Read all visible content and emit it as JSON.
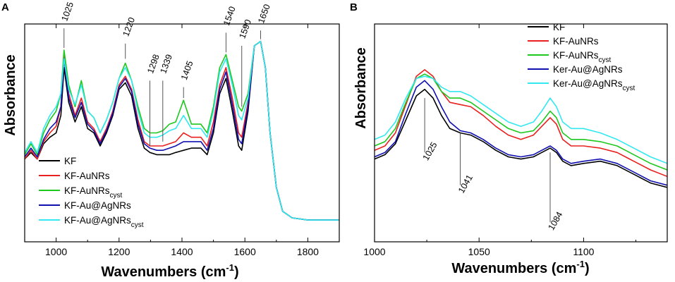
{
  "figure": {
    "panels": [
      "A",
      "B"
    ],
    "ylabel": "Absorbance",
    "xlabel_main": "Wavenumbers (cm",
    "xlabel_sup": "-1",
    "xlabel_close": ")"
  },
  "colors": {
    "KF": "#000000",
    "KF-AuNRs": "#e8201f",
    "KF-AuNRs-cyst": "#1ec81e",
    "Au@AgNRs": "#1010b0",
    "Au@AgNRs-cyst": "#33e8f0"
  },
  "chart_data": [
    {
      "type": "line",
      "panel": "A",
      "xlabel": "Wavenumbers (cm-1)",
      "ylabel": "Absorbance",
      "xlim": [
        900,
        1900
      ],
      "ylim": [
        0,
        1
      ],
      "xticks": [
        1000,
        1200,
        1400,
        1600,
        1800
      ],
      "x": [
        900,
        920,
        940,
        960,
        980,
        1000,
        1015,
        1025,
        1040,
        1060,
        1080,
        1100,
        1120,
        1140,
        1160,
        1180,
        1200,
        1220,
        1240,
        1260,
        1280,
        1298,
        1320,
        1339,
        1360,
        1380,
        1405,
        1430,
        1460,
        1480,
        1500,
        1520,
        1540,
        1560,
        1580,
        1590,
        1610,
        1630,
        1650,
        1665,
        1680,
        1700,
        1720,
        1750,
        1800,
        1850,
        1900
      ],
      "series": [
        {
          "name": "KF",
          "color_key": "KF",
          "values": [
            0.38,
            0.41,
            0.38,
            0.45,
            0.48,
            0.5,
            0.58,
            0.8,
            0.64,
            0.55,
            0.62,
            0.52,
            0.5,
            0.44,
            0.5,
            0.58,
            0.7,
            0.73,
            0.67,
            0.52,
            0.43,
            0.41,
            0.4,
            0.4,
            0.4,
            0.41,
            0.42,
            0.43,
            0.43,
            0.4,
            0.5,
            0.68,
            0.75,
            0.6,
            0.44,
            0.42,
            0.6,
            0.9,
            0.92,
            0.8,
            0.5,
            0.25,
            0.14,
            0.11,
            0.1,
            0.1,
            0.1
          ]
        },
        {
          "name": "KF-AuNRs",
          "color_key": "KF-AuNRs",
          "values": [
            0.38,
            0.42,
            0.38,
            0.46,
            0.5,
            0.53,
            0.62,
            0.86,
            0.68,
            0.58,
            0.66,
            0.55,
            0.52,
            0.46,
            0.52,
            0.6,
            0.72,
            0.76,
            0.7,
            0.56,
            0.46,
            0.44,
            0.44,
            0.44,
            0.45,
            0.46,
            0.5,
            0.48,
            0.48,
            0.44,
            0.55,
            0.72,
            0.8,
            0.66,
            0.5,
            0.48,
            0.64,
            0.9,
            0.92,
            0.8,
            0.5,
            0.25,
            0.14,
            0.11,
            0.1,
            0.1,
            0.1
          ]
        },
        {
          "name": "KF-AuNRs-cyst",
          "color_key": "KF-AuNRs-cyst",
          "values": [
            0.4,
            0.45,
            0.4,
            0.5,
            0.56,
            0.6,
            0.68,
            0.88,
            0.72,
            0.62,
            0.74,
            0.6,
            0.57,
            0.5,
            0.56,
            0.64,
            0.75,
            0.82,
            0.74,
            0.62,
            0.52,
            0.5,
            0.5,
            0.51,
            0.54,
            0.55,
            0.65,
            0.54,
            0.54,
            0.5,
            0.62,
            0.8,
            0.86,
            0.74,
            0.62,
            0.6,
            0.68,
            0.9,
            0.92,
            0.8,
            0.5,
            0.25,
            0.14,
            0.11,
            0.1,
            0.1,
            0.1
          ]
        },
        {
          "name": "Au@AgNRs",
          "color_key": "Au@AgNRs",
          "values": [
            0.39,
            0.43,
            0.39,
            0.47,
            0.52,
            0.55,
            0.62,
            0.84,
            0.66,
            0.57,
            0.64,
            0.54,
            0.51,
            0.45,
            0.51,
            0.59,
            0.71,
            0.75,
            0.69,
            0.54,
            0.45,
            0.43,
            0.42,
            0.42,
            0.43,
            0.44,
            0.46,
            0.46,
            0.46,
            0.42,
            0.52,
            0.7,
            0.78,
            0.63,
            0.47,
            0.45,
            0.62,
            0.9,
            0.92,
            0.8,
            0.5,
            0.25,
            0.14,
            0.11,
            0.1,
            0.1,
            0.1
          ]
        },
        {
          "name": "Au@AgNRs-cyst",
          "color_key": "Au@AgNRs-cyst",
          "values": [
            0.41,
            0.46,
            0.41,
            0.52,
            0.58,
            0.62,
            0.68,
            0.84,
            0.7,
            0.63,
            0.72,
            0.6,
            0.57,
            0.5,
            0.56,
            0.64,
            0.75,
            0.8,
            0.74,
            0.6,
            0.5,
            0.48,
            0.48,
            0.49,
            0.51,
            0.52,
            0.58,
            0.52,
            0.52,
            0.48,
            0.6,
            0.78,
            0.84,
            0.72,
            0.58,
            0.56,
            0.66,
            0.9,
            0.92,
            0.8,
            0.5,
            0.25,
            0.14,
            0.11,
            0.1,
            0.1,
            0.1
          ]
        }
      ],
      "annotations": [
        {
          "label": "1025",
          "x": 1025,
          "y": 0.89,
          "line": [
            0.89,
            0.98
          ],
          "text_y": 1.01,
          "rotate": -70
        },
        {
          "label": "1220",
          "x": 1220,
          "y": 0.84,
          "line": [
            0.84,
            0.91
          ],
          "text_y": 0.94,
          "rotate": -70
        },
        {
          "label": "1298",
          "x": 1298,
          "y": 0.44,
          "line": [
            0.44,
            0.74
          ],
          "text_y": 0.77,
          "rotate": -70
        },
        {
          "label": "1339",
          "x": 1339,
          "y": 0.46,
          "line": [
            0.46,
            0.74
          ],
          "text_y": 0.77,
          "rotate": -70
        },
        {
          "label": "1405",
          "x": 1405,
          "y": 0.66,
          "line": [
            0.66,
            0.71
          ],
          "text_y": 0.74,
          "rotate": -70
        },
        {
          "label": "1540",
          "x": 1540,
          "y": 0.87,
          "line": [
            0.87,
            0.96
          ],
          "text_y": 0.99,
          "rotate": -70
        },
        {
          "label": "1590",
          "x": 1590,
          "y": 0.62,
          "line": [
            0.62,
            0.9
          ],
          "text_y": 0.93,
          "rotate": -70
        },
        {
          "label": "1650",
          "x": 1650,
          "y": 0.93,
          "line": [
            0.93,
            0.97
          ],
          "text_y": 1.0,
          "rotate": -70
        }
      ],
      "legend": {
        "placement": "bottom-left",
        "entries": [
          {
            "main": "KF",
            "sub": "",
            "color_key": "KF"
          },
          {
            "main": "KF-AuNRs",
            "sub": "",
            "color_key": "KF-AuNRs"
          },
          {
            "main": "KF-AuNRs",
            "sub": "cyst",
            "color_key": "KF-AuNRs-cyst"
          },
          {
            "main": "KF-Au@AgNRs",
            "sub": "",
            "color_key": "Au@AgNRs"
          },
          {
            "main": "KF-Au@AgNRs",
            "sub": "cyst",
            "color_key": "Au@AgNRs-cyst"
          }
        ]
      }
    },
    {
      "type": "line",
      "panel": "B",
      "xlabel": "Wavenumbers (cm-1)",
      "ylabel": "Absorbance",
      "xlim": [
        1000,
        1140
      ],
      "ylim": [
        0,
        1
      ],
      "xticks": [
        1000,
        1050,
        1100
      ],
      "x": [
        1000,
        1005,
        1010,
        1015,
        1020,
        1024,
        1028,
        1032,
        1036,
        1041,
        1046,
        1052,
        1058,
        1064,
        1070,
        1076,
        1080,
        1084,
        1087,
        1090,
        1094,
        1100,
        1108,
        1116,
        1124,
        1132,
        1140
      ],
      "series": [
        {
          "name": "KF",
          "color_key": "KF",
          "values": [
            0.38,
            0.4,
            0.45,
            0.56,
            0.67,
            0.7,
            0.66,
            0.58,
            0.52,
            0.5,
            0.49,
            0.46,
            0.42,
            0.39,
            0.38,
            0.39,
            0.41,
            0.43,
            0.41,
            0.37,
            0.35,
            0.36,
            0.37,
            0.35,
            0.31,
            0.27,
            0.25
          ]
        },
        {
          "name": "KF-AuNRs",
          "color_key": "KF-AuNRs",
          "values": [
            0.42,
            0.44,
            0.5,
            0.63,
            0.76,
            0.79,
            0.76,
            0.69,
            0.64,
            0.63,
            0.62,
            0.58,
            0.53,
            0.49,
            0.47,
            0.49,
            0.53,
            0.57,
            0.54,
            0.47,
            0.44,
            0.44,
            0.43,
            0.41,
            0.37,
            0.33,
            0.3
          ]
        },
        {
          "name": "KF-AuNRs-cyst",
          "color_key": "KF-AuNRs-cyst",
          "values": [
            0.44,
            0.46,
            0.52,
            0.64,
            0.75,
            0.77,
            0.75,
            0.69,
            0.66,
            0.66,
            0.64,
            0.6,
            0.56,
            0.52,
            0.5,
            0.51,
            0.55,
            0.6,
            0.57,
            0.5,
            0.47,
            0.47,
            0.46,
            0.44,
            0.4,
            0.36,
            0.33
          ]
        },
        {
          "name": "Au@AgNRs",
          "color_key": "Au@AgNRs",
          "values": [
            0.39,
            0.41,
            0.46,
            0.59,
            0.71,
            0.74,
            0.7,
            0.62,
            0.55,
            0.51,
            0.5,
            0.47,
            0.43,
            0.4,
            0.39,
            0.4,
            0.42,
            0.44,
            0.42,
            0.38,
            0.36,
            0.37,
            0.38,
            0.36,
            0.32,
            0.28,
            0.26
          ]
        },
        {
          "name": "Au@AgNRs-cyst",
          "color_key": "Au@AgNRs-cyst",
          "values": [
            0.47,
            0.49,
            0.55,
            0.66,
            0.75,
            0.76,
            0.75,
            0.71,
            0.69,
            0.69,
            0.67,
            0.63,
            0.59,
            0.55,
            0.53,
            0.55,
            0.6,
            0.66,
            0.62,
            0.55,
            0.52,
            0.52,
            0.5,
            0.47,
            0.43,
            0.39,
            0.36
          ]
        }
      ],
      "annotations": [
        {
          "label": "1025",
          "x": 1024,
          "y": 0.66,
          "line": [
            0.41,
            0.66
          ],
          "text_y": 0.37,
          "rotate": -60
        },
        {
          "label": "1041",
          "x": 1041,
          "y": 0.5,
          "line": [
            0.26,
            0.5
          ],
          "text_y": 0.22,
          "rotate": -60
        },
        {
          "label": "1084",
          "x": 1084,
          "y": 0.41,
          "line": [
            0.09,
            0.41
          ],
          "text_y": 0.05,
          "rotate": -60
        }
      ],
      "legend": {
        "placement": "top-right",
        "entries": [
          {
            "main": "KF",
            "sub": "",
            "color_key": "KF"
          },
          {
            "main": "KF-AuNRs",
            "sub": "",
            "color_key": "KF-AuNRs"
          },
          {
            "main": "KF-AuNRs",
            "sub": "cyst",
            "color_key": "KF-AuNRs-cyst"
          },
          {
            "main": "Ker-Au@AgNRs",
            "sub": "",
            "color_key": "Au@AgNRs"
          },
          {
            "main": "Ker-Au@AgNRs",
            "sub": "cyst",
            "color_key": "Au@AgNRs-cyst"
          }
        ]
      }
    }
  ]
}
